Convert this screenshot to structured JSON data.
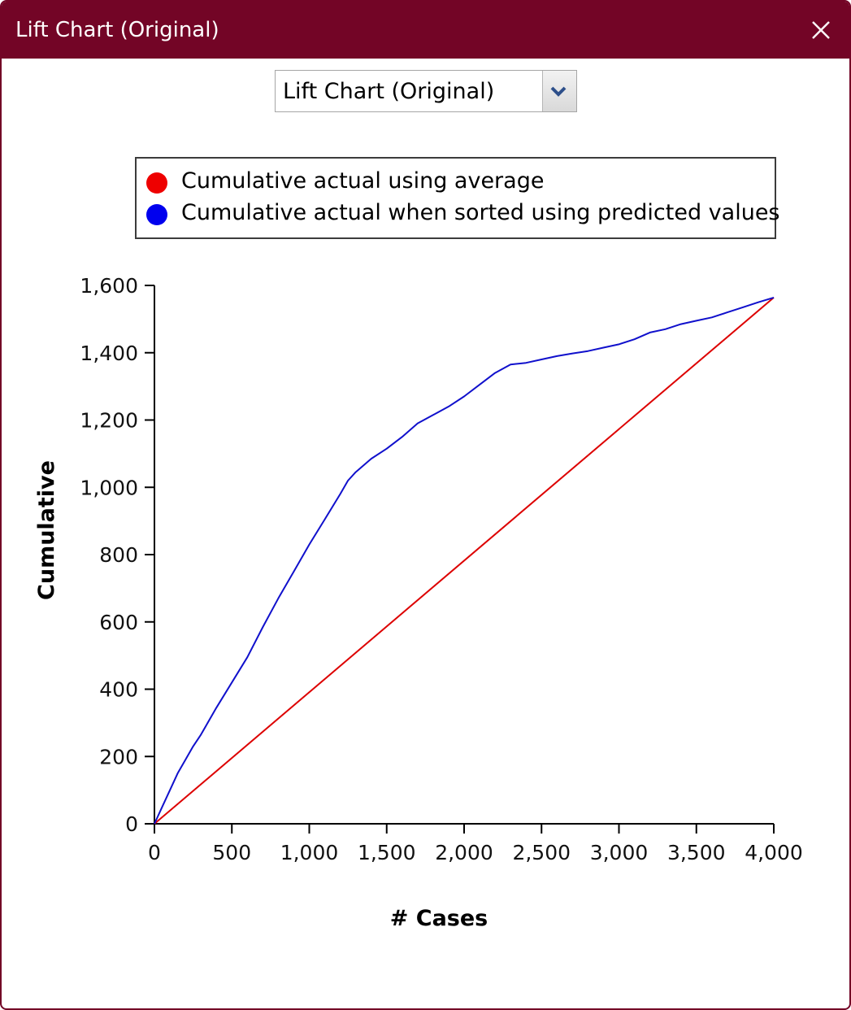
{
  "window": {
    "title": "Lift Chart (Original)",
    "colors": {
      "titlebar": "#730526",
      "title_text": "#ffffff"
    }
  },
  "dropdown": {
    "selected": "Lift Chart (Original)"
  },
  "chart_data": {
    "type": "line",
    "title": "",
    "xlabel": "# Cases",
    "ylabel": "Cumulative",
    "xlim": [
      0,
      4000
    ],
    "ylim": [
      0,
      1600
    ],
    "xticks": [
      0,
      500,
      1000,
      1500,
      2000,
      2500,
      3000,
      3500,
      4000
    ],
    "yticks": [
      0,
      200,
      400,
      600,
      800,
      1000,
      1200,
      1400,
      1600
    ],
    "xtick_labels": [
      "0",
      "500",
      "1,000",
      "1,500",
      "2,000",
      "2,500",
      "3,000",
      "3,500",
      "4,000"
    ],
    "ytick_labels": [
      "0",
      "200",
      "400",
      "600",
      "800",
      "1,000",
      "1,200",
      "1,400",
      "1,600"
    ],
    "grid": false,
    "legend_position": "top",
    "series": [
      {
        "name": "Cumulative actual using average",
        "color": "#dd0000",
        "x": [
          0,
          4000
        ],
        "y": [
          0,
          1564
        ]
      },
      {
        "name": "Cumulative actual when sorted using predicted values",
        "color": "#1010cc",
        "x": [
          0,
          50,
          100,
          150,
          200,
          250,
          300,
          400,
          500,
          600,
          700,
          800,
          900,
          1000,
          1100,
          1200,
          1250,
          1300,
          1400,
          1500,
          1600,
          1700,
          1800,
          1900,
          2000,
          2100,
          2200,
          2300,
          2400,
          2500,
          2600,
          2700,
          2800,
          2900,
          3000,
          3100,
          3200,
          3300,
          3400,
          3500,
          3600,
          3700,
          3800,
          3900,
          4000
        ],
        "y": [
          0,
          50,
          100,
          150,
          190,
          230,
          265,
          345,
          420,
          495,
          585,
          670,
          750,
          830,
          905,
          980,
          1020,
          1045,
          1085,
          1115,
          1150,
          1190,
          1215,
          1240,
          1270,
          1305,
          1340,
          1365,
          1370,
          1380,
          1390,
          1398,
          1405,
          1415,
          1425,
          1440,
          1460,
          1470,
          1485,
          1495,
          1505,
          1520,
          1535,
          1550,
          1564
        ]
      }
    ]
  }
}
